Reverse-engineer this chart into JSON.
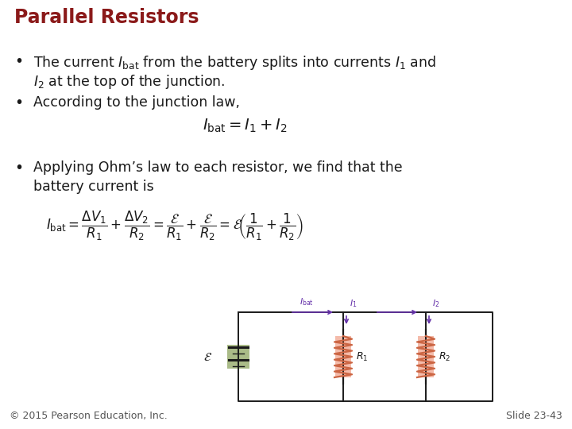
{
  "title": "Parallel Resistors",
  "title_color": "#8B1A1A",
  "title_fontsize": 17,
  "background_color": "#FFFFFF",
  "bullet_color": "#1a1a1a",
  "bullet_fontsize": 12.5,
  "bullet1_line1": "The current $I_{\\mathrm{bat}}$ from the battery splits into currents $I_1$ and",
  "bullet1_line2": "$I_2$ at the top of the junction.",
  "bullet2": "According to the junction law,",
  "equation1": "$I_{\\mathrm{bat}} = I_1 + I_2$",
  "bullet3_line1": "Applying Ohm’s law to each resistor, we find that the",
  "bullet3_line2": "battery current is",
  "equation2": "$I_{\\mathrm{bat}} = \\dfrac{\\Delta V_1}{R_1} + \\dfrac{\\Delta V_2}{R_2} = \\dfrac{\\mathcal{E}}{R_1} + \\dfrac{\\mathcal{E}}{R_2} = \\mathcal{E}\\!\\left(\\dfrac{1}{R_1} + \\dfrac{1}{R_2}\\right)$",
  "footer_left": "© 2015 Pearson Education, Inc.",
  "footer_right": "Slide 23-43",
  "footer_fontsize": 9,
  "wire_color": "#1a1a1a",
  "arrow_color": "#6633AA",
  "resistor_color": "#CC6644",
  "resistor_bg": "#F4BBAA",
  "battery_green": "#AABB88",
  "eq1_fontsize": 13,
  "eq2_fontsize": 12
}
